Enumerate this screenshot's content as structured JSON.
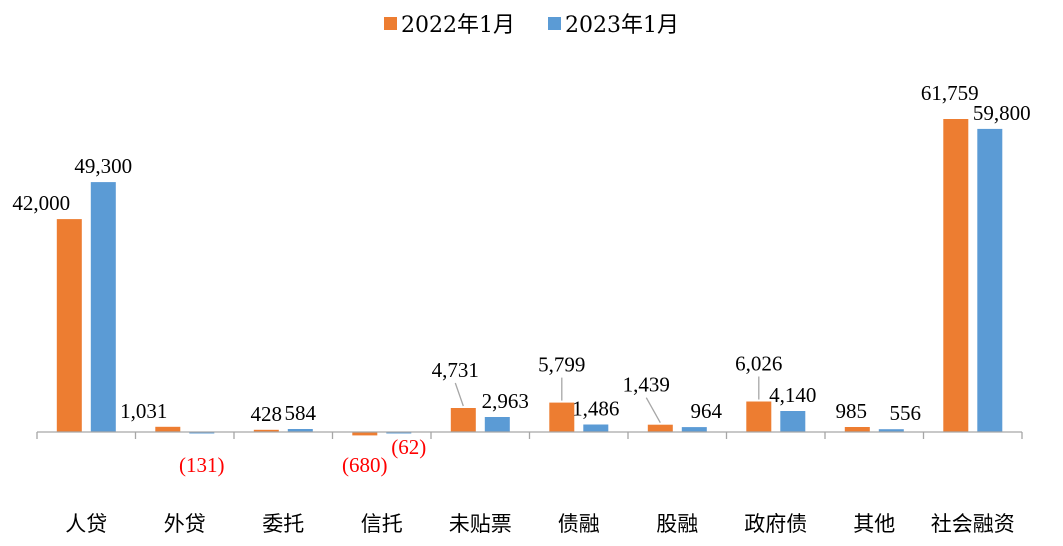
{
  "chart_data": {
    "type": "bar",
    "categories": [
      "人贷",
      "外贷",
      "委托",
      "信托",
      "未贴票",
      "债融",
      "股融",
      "政府债",
      "其他",
      "社会融资"
    ],
    "series": [
      {
        "name": "2022年1月",
        "color": "#ED7D31",
        "values": [
          42000,
          1031,
          428,
          -680,
          4731,
          5799,
          1439,
          6026,
          985,
          61759
        ],
        "labels": [
          "42,000",
          "1,031",
          "428",
          "(680)",
          "4,731",
          "5,799",
          "1,439",
          "6,026",
          "985",
          "61,759"
        ]
      },
      {
        "name": "2023年1月",
        "color": "#5B9BD5",
        "values": [
          49300,
          -131,
          584,
          -62,
          2963,
          1486,
          964,
          4140,
          556,
          59800
        ],
        "labels": [
          "49,300",
          "(131)",
          "584",
          "(62)",
          "2,963",
          "1,486",
          "964",
          "4,140",
          "556",
          "59,800"
        ]
      }
    ],
    "negative_label_color": "#FF0000",
    "legend_position": "top-center",
    "grid": false,
    "ylim": [
      -2000,
      64000
    ]
  }
}
